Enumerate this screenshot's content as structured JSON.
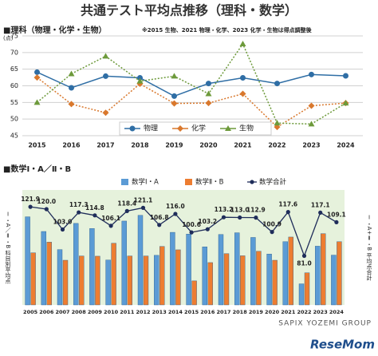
{
  "title": "共通テスト平均点推移（理科・数学）",
  "chart_data": [
    {
      "type": "line",
      "title": "■理科（物理・化学・生物）",
      "subtitle": "※2015 生物、2021 物理・化学、2023 化学・生物は得点調整後",
      "ylabel": "(点)",
      "categories": [
        "2015",
        "2016",
        "2017",
        "2018",
        "2019",
        "2020",
        "2021",
        "2022",
        "2023",
        "2024"
      ],
      "series": [
        {
          "name": "物理",
          "color": "#2f6ea5",
          "marker": "circle",
          "linestyle": "solid",
          "values": [
            64.1,
            59.4,
            62.9,
            62.4,
            56.9,
            60.7,
            62.4,
            60.7,
            63.4,
            63.0
          ]
        },
        {
          "name": "化学",
          "color": "#d9782d",
          "marker": "diamond",
          "linestyle": "dotted",
          "values": [
            62.5,
            54.5,
            51.9,
            60.6,
            54.7,
            54.8,
            57.6,
            47.6,
            54.0,
            54.8
          ]
        },
        {
          "name": "生物",
          "color": "#6d9a3b",
          "marker": "triangle",
          "linestyle": "dotted",
          "values": [
            55.0,
            63.6,
            68.9,
            61.4,
            62.9,
            57.6,
            72.6,
            48.8,
            48.5,
            54.8
          ]
        }
      ],
      "ylim": [
        45,
        75
      ],
      "yticks": [
        45,
        50,
        55,
        60,
        65,
        70,
        75
      ],
      "grid": true,
      "legend": "lower center"
    },
    {
      "type": "bar",
      "title": "■数学Ⅰ・A／Ⅱ・B",
      "ylabel": "Ⅰ・A／Ⅱ・B 科目別平均点",
      "y2label": "Ⅰ・A+Ⅱ・B 平均点合計",
      "categories": [
        "2005",
        "2006",
        "2007",
        "2008",
        "2009",
        "2010",
        "2011",
        "2012",
        "2013",
        "2014",
        "2015",
        "2016",
        "2017",
        "2018",
        "2019",
        "2020",
        "2021",
        "2022",
        "2023",
        "2024"
      ],
      "series": [
        {
          "name": "数学Ⅰ・A",
          "color": "#5b9bd5",
          "values": [
            69.4,
            62.5,
            54.0,
            66.3,
            63.9,
            49.1,
            67.4,
            70.1,
            51.3,
            62.1,
            61.3,
            55.3,
            61.1,
            61.9,
            59.7,
            51.9,
            57.7,
            37.9,
            55.6,
            51.4
          ]
        },
        {
          "name": "数学Ⅱ・B",
          "color": "#ed7d31",
          "values": [
            52.5,
            57.5,
            49.0,
            51.0,
            50.9,
            57.0,
            51.0,
            51.0,
            55.5,
            53.9,
            39.3,
            47.9,
            52.1,
            51.1,
            53.2,
            49.0,
            59.9,
            43.1,
            61.5,
            57.7
          ]
        },
        {
          "name": "数学合計",
          "color": "#1f2d5a",
          "type": "line",
          "axis": "y2",
          "values": [
            121.9,
            120.0,
            103.0,
            117.3,
            114.8,
            106.1,
            118.4,
            121.1,
            106.8,
            116.0,
            100.6,
            103.2,
            113.2,
            113.0,
            112.9,
            100.9,
            117.6,
            81.0,
            117.1,
            109.1
          ],
          "value_labels": [
            "121.9",
            "120.0",
            "103.0",
            "117.3",
            "114.8",
            "106.1",
            "118.4",
            "121.1",
            "106.8",
            "116.0",
            "100.6",
            "103.2",
            "113.2",
            "113.0",
            "112.9",
            "100.9",
            "117.6",
            "81.0",
            "117.1",
            "109.1"
          ]
        }
      ],
      "ylim": [
        28,
        82
      ],
      "y2lim": [
        40,
        136
      ],
      "legend": "upper center",
      "background": "#e6f2dc"
    }
  ],
  "footer": {
    "credit": "SAPIX YOZEMI GROUP",
    "logo": "ReseMom"
  }
}
